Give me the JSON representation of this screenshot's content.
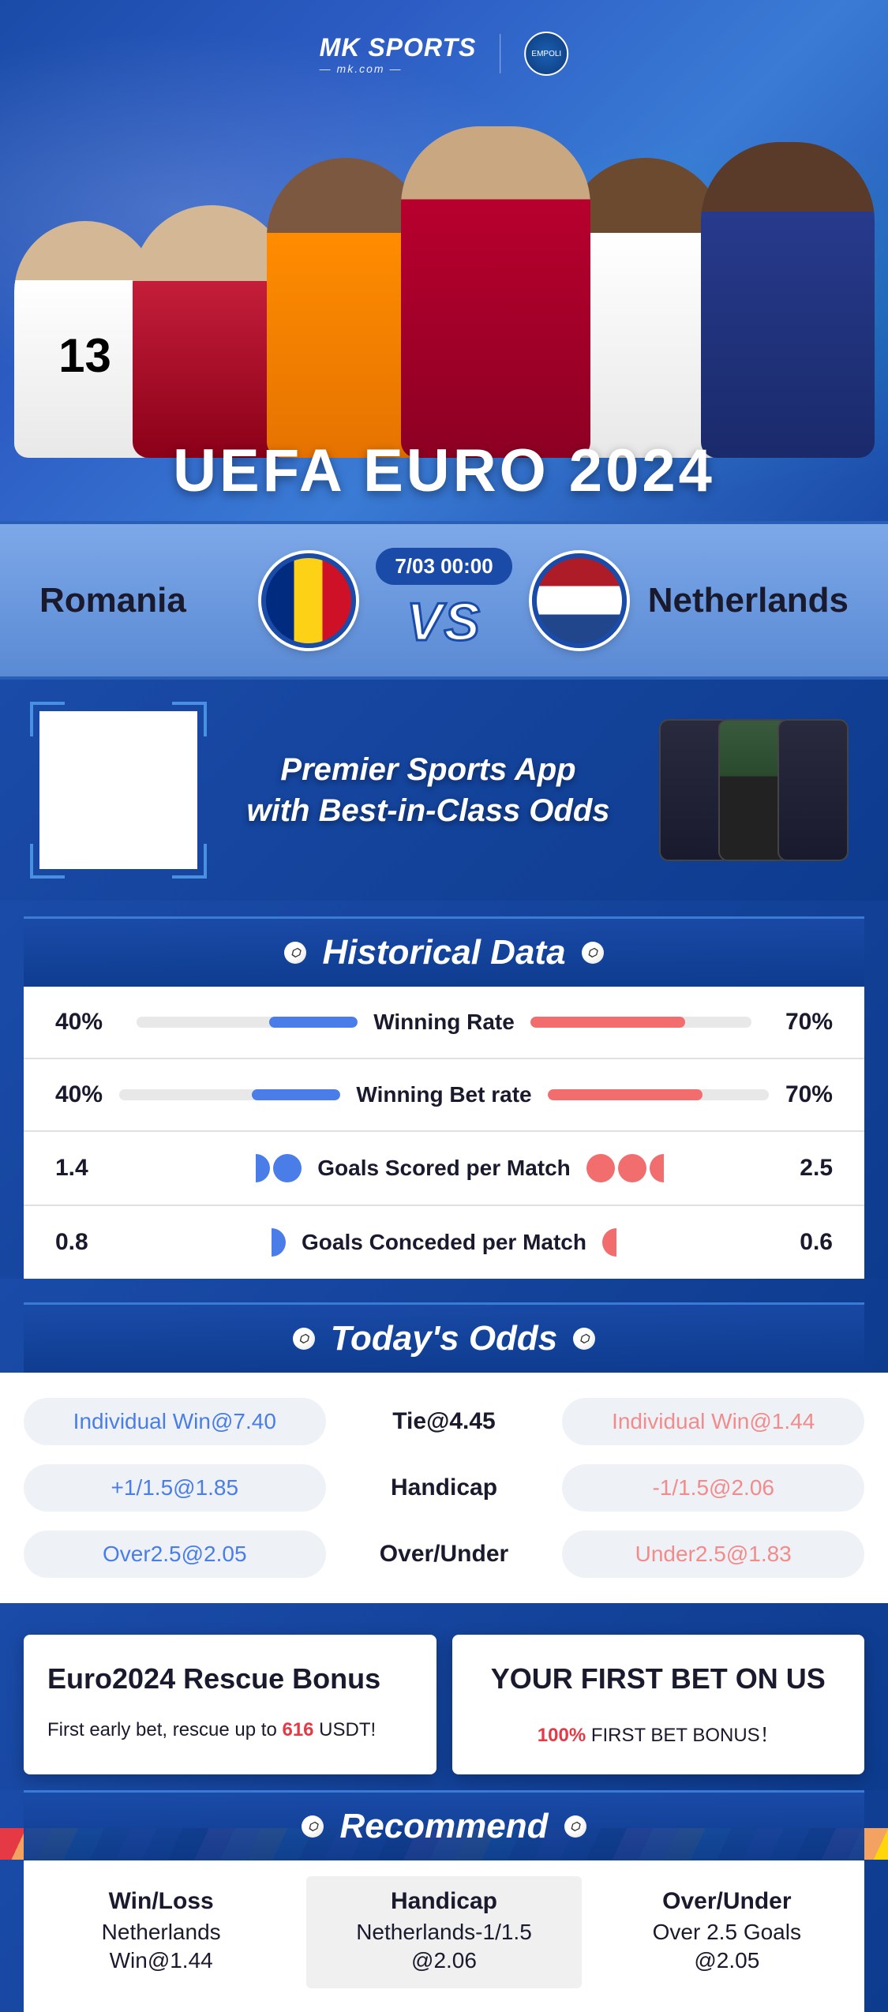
{
  "brand": {
    "name": "MK SPORTS",
    "sub": "— mk.com —",
    "badge": "EMPOLI"
  },
  "hero": {
    "title": "UEFA EURO 2024"
  },
  "match": {
    "team_a": "Romania",
    "team_b": "Netherlands",
    "time": "7/03 00:00",
    "vs": "VS",
    "flag_a_colors": [
      "#002b7f",
      "#fcd116",
      "#ce1126"
    ],
    "flag_b_colors": [
      "#ae1c28",
      "#ffffff",
      "#21468b"
    ]
  },
  "promo": {
    "line1": "Premier Sports App",
    "line2": "with Best-in-Class Odds"
  },
  "historical": {
    "title": "Historical Data",
    "rows": [
      {
        "type": "bar",
        "left_val": "40%",
        "left_pct": 40,
        "label": "Winning Rate",
        "right_val": "70%",
        "right_pct": 70,
        "left_color": "#4a7de8",
        "right_color": "#f26d6d"
      },
      {
        "type": "bar",
        "left_val": "40%",
        "left_pct": 40,
        "label": "Winning Bet rate",
        "right_val": "70%",
        "right_pct": 70,
        "left_color": "#4a7de8",
        "right_color": "#f26d6d"
      },
      {
        "type": "balls",
        "left_val": "1.4",
        "left_balls": 1.4,
        "label": "Goals Scored per Match",
        "right_val": "2.5",
        "right_balls": 2.5
      },
      {
        "type": "balls",
        "left_val": "0.8",
        "left_balls": 0.8,
        "label": "Goals Conceded per Match",
        "right_val": "0.6",
        "right_balls": 0.6
      }
    ]
  },
  "odds": {
    "title": "Today's Odds",
    "rows": [
      {
        "left": "Individual Win@7.40",
        "center": "Tie@4.45",
        "right": "Individual Win@1.44"
      },
      {
        "left": "+1/1.5@1.85",
        "center": "Handicap",
        "right": "-1/1.5@2.06"
      },
      {
        "left": "Over2.5@2.05",
        "center": "Over/Under",
        "right": "Under2.5@1.83"
      }
    ],
    "left_color": "#4a7de8",
    "right_color": "#f28b8b"
  },
  "bonuses": [
    {
      "title": "Euro2024 Rescue Bonus",
      "desc_pre": "First early bet, rescue up to ",
      "highlight": "616",
      "desc_post": " USDT!"
    },
    {
      "title": "YOUR FIRST BET ON US",
      "desc_pre": "",
      "highlight": "100%",
      "desc_post": " FIRST BET BONUS！"
    }
  ],
  "recommend": {
    "title": "Recommend",
    "cols": [
      {
        "title": "Win/Loss",
        "line1": "Netherlands",
        "line2": "Win@1.44",
        "active": false
      },
      {
        "title": "Handicap",
        "line1": "Netherlands-1/1.5",
        "line2": "@2.06",
        "active": true
      },
      {
        "title": "Over/Under",
        "line1": "Over 2.5 Goals",
        "line2": "@2.05",
        "active": false
      }
    ]
  },
  "colors": {
    "primary": "#1a4ba8",
    "blue_accent": "#4a7de8",
    "red_accent": "#f26d6d",
    "bg": "#ffffff"
  }
}
